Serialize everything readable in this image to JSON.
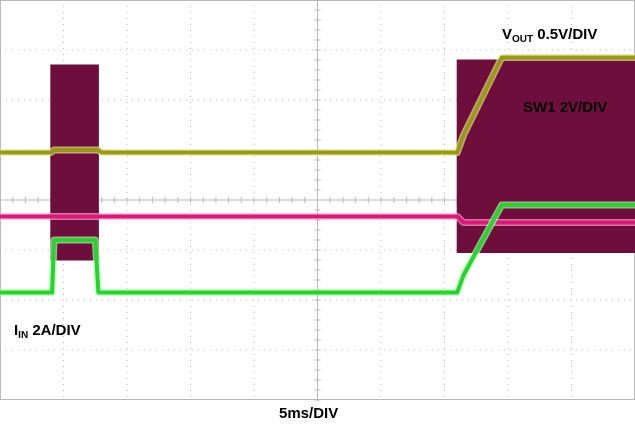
{
  "chart_data": {
    "type": "line",
    "instrument": "oscilloscope",
    "grid": true,
    "x_divisions": 10,
    "y_divisions": 8,
    "timebase_label": "5ms/DIV",
    "colors": {
      "vout": "#9a9a12",
      "sw1": "#6e0e3c",
      "vin": "#e0157a",
      "iin": "#22d62a",
      "grid": "#b8b8b8"
    },
    "series": [
      {
        "key": "vout",
        "name_main": "V",
        "name_sub": "OUT",
        "scale": "0.5V/DIV",
        "x_div": [
          0,
          0.8,
          0.85,
          1.55,
          1.6,
          7.2,
          7.3,
          7.9,
          10
        ],
        "y_div": [
          4.95,
          4.95,
          5.0,
          5.0,
          4.95,
          4.95,
          5.3,
          6.85,
          6.85
        ]
      },
      {
        "key": "sw1",
        "name_main": "SW1",
        "name_sub": "",
        "scale": "2V/DIV",
        "x_div": [
          0,
          0.8,
          0.8,
          1.55,
          1.55,
          7.2,
          7.2,
          10
        ],
        "y_div": [
          3.7,
          3.7,
          6.7,
          6.7,
          3.7,
          3.7,
          6.8,
          6.8
        ],
        "low_div": [
          3.7,
          3.7,
          2.8,
          2.8,
          3.7,
          3.7,
          2.95,
          2.95
        ]
      },
      {
        "key": "vin",
        "name_main": "",
        "name_sub": "",
        "scale": "",
        "x_div": [
          0,
          7.2,
          7.3,
          10
        ],
        "y_div": [
          3.67,
          3.67,
          3.55,
          3.55
        ]
      },
      {
        "key": "iin",
        "name_main": "I",
        "name_sub": "IN",
        "scale": "2A/DIV",
        "x_div": [
          0,
          0.82,
          0.85,
          1.5,
          1.55,
          7.2,
          7.3,
          7.9,
          10
        ],
        "y_div": [
          2.15,
          2.15,
          3.2,
          3.2,
          2.15,
          2.15,
          2.5,
          3.9,
          3.9
        ]
      }
    ]
  }
}
